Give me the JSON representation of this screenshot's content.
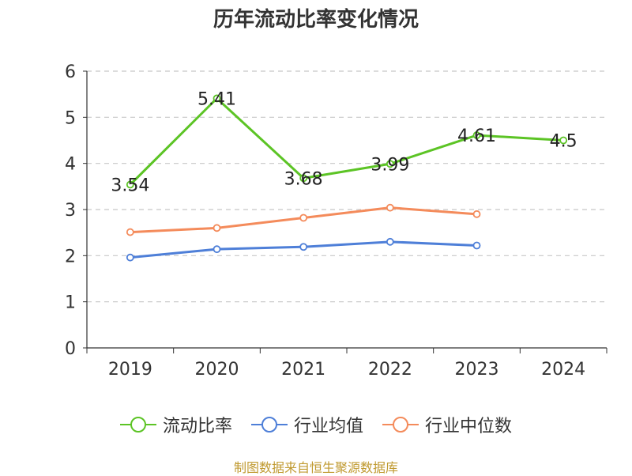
{
  "chart_data": {
    "type": "line",
    "title": "历年流动比率变化情况",
    "categories": [
      "2019",
      "2020",
      "2021",
      "2022",
      "2023",
      "2024"
    ],
    "ylim": [
      0,
      6
    ],
    "yticks": [
      0,
      1,
      2,
      3,
      4,
      5,
      6
    ],
    "grid": true,
    "legend_position": "bottom",
    "series": [
      {
        "name": "流动比率",
        "color": "#5cc425",
        "values": [
          3.54,
          5.41,
          3.68,
          3.99,
          4.61,
          4.5
        ],
        "labels": [
          "3.54",
          "5.41",
          "3.68",
          "3.99",
          "4.61",
          "4.5"
        ]
      },
      {
        "name": "行业均值",
        "color": "#4e7fd8",
        "values": [
          1.96,
          2.14,
          2.19,
          2.3,
          2.22,
          null
        ]
      },
      {
        "name": "行业中位数",
        "color": "#f48b5b",
        "values": [
          2.51,
          2.6,
          2.82,
          3.04,
          2.9,
          null
        ]
      }
    ]
  },
  "source": "制图数据来自恒生聚源数据库"
}
